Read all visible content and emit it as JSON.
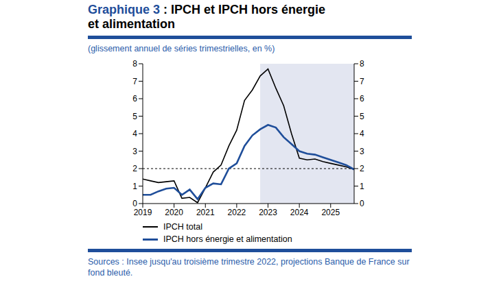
{
  "chart_data": {
    "type": "line",
    "title": [
      "Graphique 3 : IPCH et IPCH hors énergie",
      "et alimentation"
    ],
    "subtitle": "(glissement annuel de séries trimestrielles, en %)",
    "note": "Sources : Insee jusqu'au troisième trimestre 2022, projections Banque de France sur fond bleuté.",
    "x": [
      2019,
      2019.25,
      2019.5,
      2019.75,
      2020,
      2020.25,
      2020.5,
      2020.75,
      2021,
      2021.25,
      2021.5,
      2021.75,
      2022,
      2022.25,
      2022.5,
      2022.75,
      2023,
      2023.25,
      2023.5,
      2023.75,
      2024,
      2024.25,
      2024.5,
      2024.75,
      2025,
      2025.25,
      2025.5,
      2025.75
    ],
    "xlim": [
      2019,
      2025.75
    ],
    "xticks": [
      2019,
      2020,
      2021,
      2022,
      2023,
      2024,
      2025
    ],
    "ylim": [
      0,
      8
    ],
    "yticks": [
      0,
      1,
      2,
      3,
      4,
      5,
      6,
      7,
      8
    ],
    "y2lim": [
      0,
      8
    ],
    "y2ticks": [
      0,
      1,
      2,
      3,
      4,
      5,
      6,
      7,
      8
    ],
    "grid": false,
    "legend": "bottom",
    "series": [
      {
        "name": "IPCH total",
        "color": "#000000",
        "values": [
          1.4,
          1.3,
          1.2,
          1.25,
          1.3,
          0.3,
          0.35,
          0.05,
          0.9,
          1.8,
          2.2,
          3.3,
          4.2,
          5.9,
          6.5,
          7.3,
          7.7,
          6.6,
          5.6,
          4.0,
          2.6,
          2.5,
          2.55,
          2.4,
          2.3,
          2.2,
          2.1,
          1.95
        ]
      },
      {
        "name": "IPCH hors énergie et alimentation",
        "color": "#1F4E9A",
        "values": [
          0.5,
          0.5,
          0.7,
          0.85,
          0.9,
          0.5,
          0.8,
          0.25,
          0.9,
          1.15,
          1.1,
          2.0,
          2.3,
          3.3,
          3.9,
          4.25,
          4.5,
          4.35,
          3.8,
          3.4,
          3.0,
          2.85,
          2.8,
          2.65,
          2.5,
          2.35,
          2.2,
          1.95
        ]
      }
    ],
    "shaded_area": {
      "x": [
        2022.75,
        2025.75
      ],
      "color": "#E3E6F1"
    },
    "reference_line": {
      "y": 2,
      "line_style": "dashed",
      "color": "#000000"
    }
  }
}
